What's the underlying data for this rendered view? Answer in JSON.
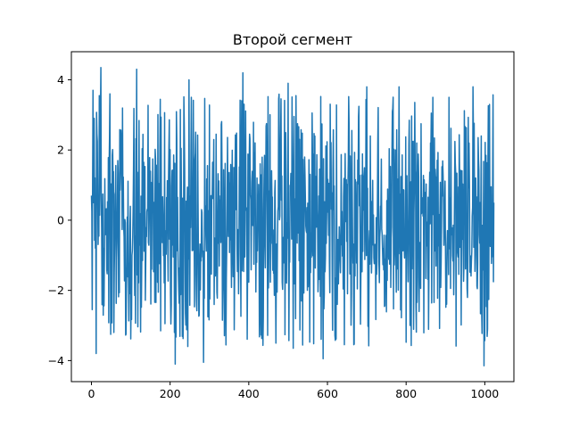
{
  "chart_data": {
    "type": "line",
    "title": "Второй сегмент",
    "xlabel": "",
    "ylabel": "",
    "xlim": [
      -51,
      1074
    ],
    "ylim": [
      -4.6,
      4.8
    ],
    "x_ticks": [
      0,
      200,
      400,
      600,
      800,
      1000
    ],
    "y_ticks": [
      -4,
      -2,
      0,
      2,
      4
    ],
    "x_tick_labels": [
      "0",
      "200",
      "400",
      "600",
      "800",
      "1000"
    ],
    "y_tick_labels": [
      "−4",
      "−2",
      "0",
      "2",
      "4"
    ],
    "grid": false,
    "legend": "none",
    "series": [
      {
        "color": "#1f77b4",
        "n_points": 1024,
        "x_start": 0,
        "x_end": 1023,
        "approx_range": [
          -4.15,
          4.35
        ],
        "notable_points": [
          {
            "x": 0,
            "y": 0.7
          },
          {
            "x": 2,
            "y": -2.55
          },
          {
            "x": 4,
            "y": 3.7
          },
          {
            "x": 7,
            "y": 2.9
          },
          {
            "x": 12,
            "y": -3.8
          },
          {
            "x": 24,
            "y": 4.35
          },
          {
            "x": 47,
            "y": 3.6
          },
          {
            "x": 57,
            "y": -3.2
          },
          {
            "x": 115,
            "y": 4.3
          },
          {
            "x": 213,
            "y": -4.1
          },
          {
            "x": 248,
            "y": 4.0
          },
          {
            "x": 285,
            "y": -4.05
          },
          {
            "x": 385,
            "y": 4.2
          },
          {
            "x": 500,
            "y": 3.9
          },
          {
            "x": 513,
            "y": -3.65
          },
          {
            "x": 589,
            "y": -3.95
          },
          {
            "x": 700,
            "y": 3.8
          },
          {
            "x": 782,
            "y": 3.8
          },
          {
            "x": 868,
            "y": 3.5
          },
          {
            "x": 970,
            "y": 3.8
          },
          {
            "x": 998,
            "y": -4.15
          },
          {
            "x": 1023,
            "y": 0.5
          }
        ]
      }
    ]
  }
}
